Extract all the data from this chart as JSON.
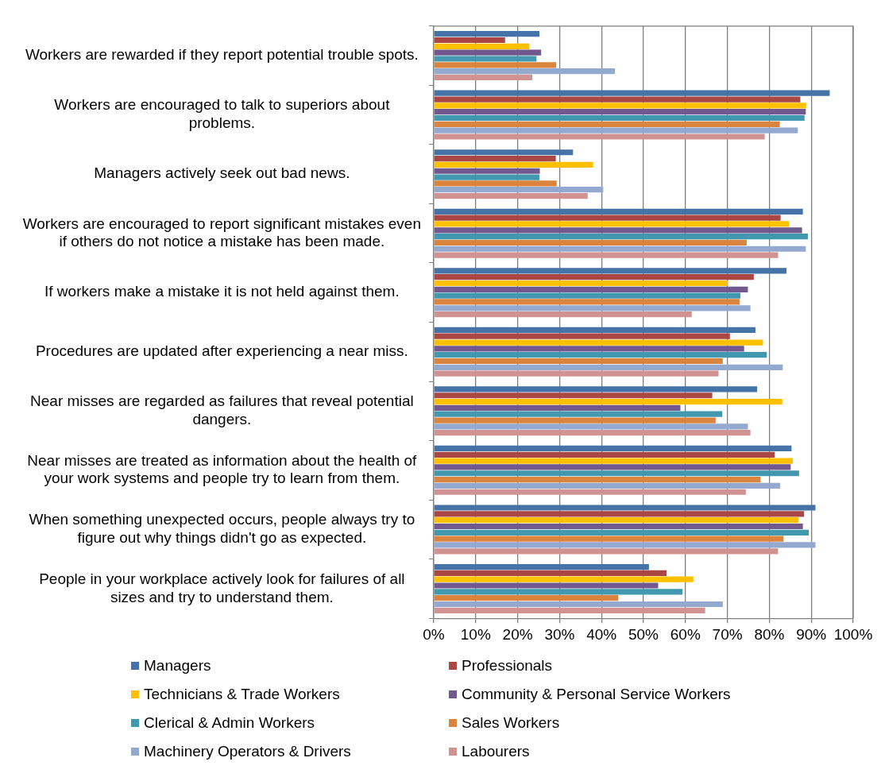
{
  "chart_data": {
    "type": "bar",
    "orientation": "horizontal",
    "categories": [
      "Workers are rewarded if they report potential trouble spots.",
      "Workers are encouraged to talk to superiors about problems.",
      "Managers actively seek out bad news.",
      "Workers are encouraged to report significant mistakes even if others do not notice a mistake has been made.",
      "If workers make a mistake it is not held against them.",
      "Procedures are updated after experiencing a near miss.",
      "Near misses are regarded as failures that reveal potential dangers.",
      "Near misses are treated as information about the health of your work systems and people try to learn from them.",
      "When something unexpected occurs, people always try to figure out why things didn't go as expected.",
      "People in your workplace actively look for failures of all sizes and try to understand them."
    ],
    "series": [
      {
        "name": "Managers",
        "color": "#4572a7",
        "values": [
          25.2,
          94.4,
          33.2,
          88.0,
          84.1,
          76.7,
          77.1,
          85.3,
          91.0,
          51.3
        ]
      },
      {
        "name": "Professionals",
        "color": "#aa4643",
        "values": [
          17.0,
          87.4,
          29.1,
          82.7,
          76.3,
          70.6,
          66.4,
          81.3,
          88.3,
          55.5
        ]
      },
      {
        "name": "Technicians & Trade Workers",
        "color": "#ffc000",
        "values": [
          22.8,
          88.8,
          38.0,
          84.7,
          70.1,
          78.5,
          83.1,
          85.6,
          87.0,
          61.9
        ]
      },
      {
        "name": "Community & Personal Service Workers",
        "color": "#71588f",
        "values": [
          25.6,
          88.7,
          25.3,
          87.8,
          74.9,
          74.0,
          58.8,
          85.1,
          88.0,
          53.5
        ]
      },
      {
        "name": "Clerical & Admin Workers",
        "color": "#4198af",
        "values": [
          24.5,
          88.4,
          25.2,
          89.2,
          73.1,
          79.4,
          68.8,
          87.1,
          89.4,
          59.3
        ]
      },
      {
        "name": "Sales Workers",
        "color": "#db843d",
        "values": [
          29.2,
          82.5,
          29.3,
          74.6,
          72.9,
          68.9,
          67.2,
          77.9,
          83.4,
          44.0
        ]
      },
      {
        "name": "Machinery Operators & Drivers",
        "color": "#93a9cf",
        "values": [
          43.2,
          86.8,
          40.4,
          88.7,
          75.5,
          83.2,
          74.9,
          82.6,
          91.0,
          68.9
        ]
      },
      {
        "name": "Labourers",
        "color": "#d19392",
        "values": [
          23.5,
          78.9,
          36.7,
          82.1,
          61.5,
          67.9,
          75.5,
          74.4,
          82.1,
          64.7
        ]
      }
    ],
    "xlim": [
      0,
      100
    ],
    "xticks": [
      {
        "value": 0,
        "label": "0%"
      },
      {
        "value": 10,
        "label": "10%"
      },
      {
        "value": 20,
        "label": "20%"
      },
      {
        "value": 30,
        "label": "30%"
      },
      {
        "value": 40,
        "label": "40%"
      },
      {
        "value": 50,
        "label": "50%"
      },
      {
        "value": 60,
        "label": "60%"
      },
      {
        "value": 70,
        "label": "70%"
      },
      {
        "value": 80,
        "label": "80%"
      },
      {
        "value": 90,
        "label": "90%"
      },
      {
        "value": 100,
        "label": "100%"
      }
    ],
    "grid": "x",
    "legend": "bottom"
  }
}
